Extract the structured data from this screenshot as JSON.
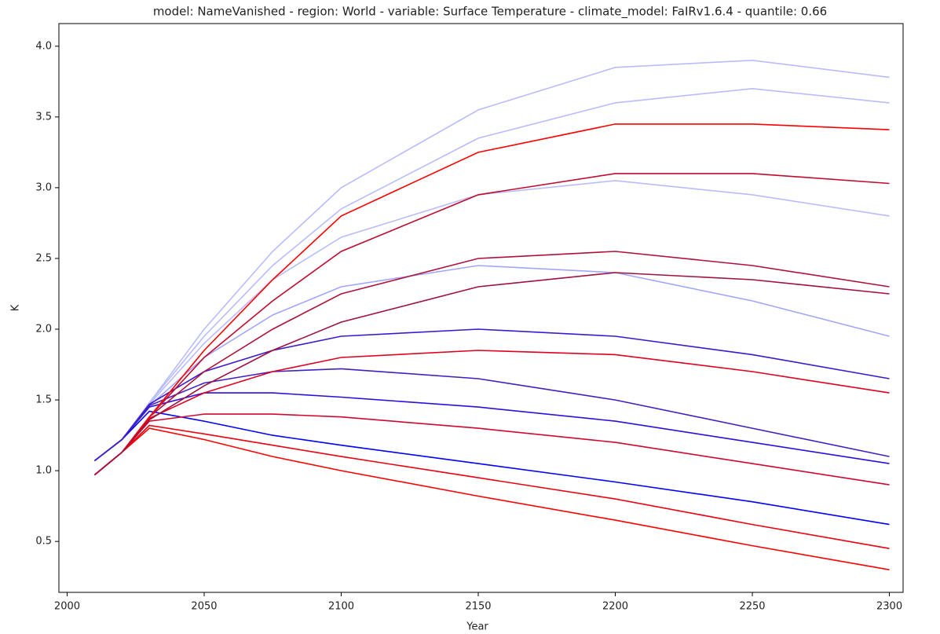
{
  "chart_data": {
    "type": "line",
    "title": "model: NameVanished - region: World - variable: Surface Temperature - climate_model: FaIRv1.6.4 - quantile: 0.66",
    "x_label": "Year",
    "y_label": "K",
    "x": [
      2010,
      2020,
      2030,
      2050,
      2075,
      2100,
      2150,
      2200,
      2250,
      2300
    ],
    "xlim": [
      1997,
      2305
    ],
    "ylim": [
      0.14,
      4.16
    ],
    "xticks": [
      2000,
      2050,
      2100,
      2150,
      2200,
      2250,
      2300
    ],
    "yticks": [
      0.5,
      {
        "value": 1,
        "label": "1.0"
      },
      1.5,
      {
        "value": 2,
        "label": "2.0"
      },
      2.5,
      {
        "value": 3,
        "label": "3.0"
      },
      3.5,
      {
        "value": 4,
        "label": "4.0"
      }
    ],
    "grid": false,
    "series": [
      {
        "color": "#b8bcff",
        "values": [
          1.07,
          1.22,
          1.48,
          2.0,
          2.55,
          3.0,
          3.55,
          3.85,
          3.9,
          3.78
        ]
      },
      {
        "color": "#b8bcff",
        "values": [
          1.07,
          1.22,
          1.48,
          1.95,
          2.45,
          2.85,
          3.35,
          3.6,
          3.7,
          3.6
        ]
      },
      {
        "color": "#b8bcff",
        "values": [
          1.07,
          1.22,
          1.47,
          1.9,
          2.35,
          2.65,
          2.95,
          3.05,
          2.95,
          2.8
        ]
      },
      {
        "color": "#a0a6ff",
        "values": [
          1.07,
          1.22,
          1.46,
          1.8,
          2.1,
          2.3,
          2.45,
          2.4,
          2.2,
          1.95
        ]
      },
      {
        "color": "#0000ff",
        "values": [
          1.07,
          1.22,
          1.42,
          1.35,
          1.25,
          1.18,
          1.05,
          0.92,
          0.78,
          0.62
        ]
      },
      {
        "color": "#2a10e0",
        "values": [
          1.07,
          1.22,
          1.45,
          1.55,
          1.55,
          1.52,
          1.45,
          1.35,
          1.2,
          1.05
        ]
      },
      {
        "color": "#3a1ad0",
        "values": [
          1.07,
          1.22,
          1.47,
          1.7,
          1.85,
          1.95,
          2.0,
          1.95,
          1.82,
          1.65
        ]
      },
      {
        "color": "#4020c0",
        "values": [
          1.07,
          1.22,
          1.46,
          1.62,
          1.7,
          1.72,
          1.65,
          1.5,
          1.3,
          1.1
        ]
      },
      {
        "color": "#ff0000",
        "values": [
          0.97,
          1.13,
          1.3,
          1.22,
          1.1,
          1.0,
          0.82,
          0.65,
          0.47,
          0.3
        ]
      },
      {
        "color": "#ee0010",
        "values": [
          0.97,
          1.13,
          1.32,
          1.26,
          1.18,
          1.1,
          0.95,
          0.8,
          0.62,
          0.45
        ]
      },
      {
        "color": "#d00830",
        "values": [
          0.97,
          1.13,
          1.35,
          1.4,
          1.4,
          1.38,
          1.3,
          1.2,
          1.05,
          0.9
        ]
      },
      {
        "color": "#e00020",
        "values": [
          0.97,
          1.13,
          1.37,
          1.55,
          1.7,
          1.8,
          1.85,
          1.82,
          1.7,
          1.55
        ]
      },
      {
        "color": "#b0103a",
        "values": [
          0.97,
          1.13,
          1.38,
          1.7,
          2.0,
          2.25,
          2.5,
          2.55,
          2.45,
          2.3
        ]
      },
      {
        "color": "#c00c30",
        "values": [
          0.97,
          1.13,
          1.38,
          1.8,
          2.2,
          2.55,
          2.95,
          3.1,
          3.1,
          3.03
        ]
      },
      {
        "color": "#ff0000",
        "values": [
          0.97,
          1.13,
          1.38,
          1.85,
          2.35,
          2.8,
          3.25,
          3.45,
          3.45,
          3.41
        ]
      },
      {
        "color": "#a01040",
        "values": [
          0.97,
          1.13,
          1.36,
          1.6,
          1.85,
          2.05,
          2.3,
          2.4,
          2.35,
          2.25
        ]
      }
    ]
  }
}
